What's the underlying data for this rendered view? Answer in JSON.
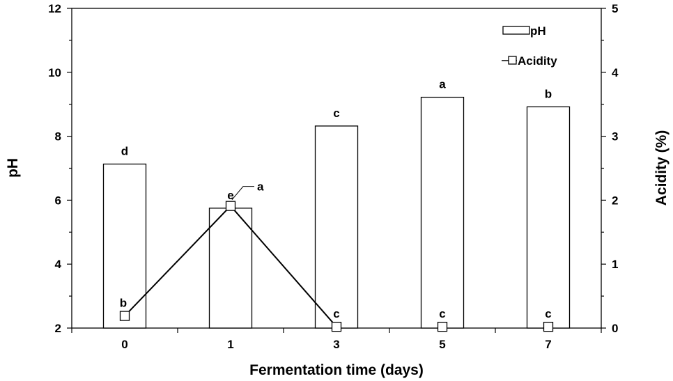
{
  "chart_data": {
    "type": "bar",
    "categories": [
      "0",
      "1",
      "3",
      "5",
      "7"
    ],
    "xlabel": "Fermentation time (days)",
    "ylabel": "pH",
    "y2label": "Acidity (%)",
    "ylim": [
      2,
      12
    ],
    "yticks": [
      2,
      4,
      6,
      8,
      10,
      12
    ],
    "y2lim": [
      0,
      5
    ],
    "y2ticks": [
      0,
      1,
      2,
      3,
      4,
      5
    ],
    "series": [
      {
        "name": "pH",
        "type": "bar",
        "axis": "left",
        "values": [
          7.13,
          5.75,
          8.32,
          9.22,
          8.92
        ],
        "labels": [
          "d",
          "e",
          "c",
          "a",
          "b"
        ]
      },
      {
        "name": "Acidity",
        "type": "line",
        "axis": "right",
        "marker": "open-square",
        "values": [
          0.19,
          1.91,
          0.02,
          0.02,
          0.02
        ],
        "labels": [
          "b",
          "a",
          "c",
          "c",
          "c"
        ],
        "connected_points": 3
      }
    ],
    "legend": "top-right",
    "grid": false
  }
}
